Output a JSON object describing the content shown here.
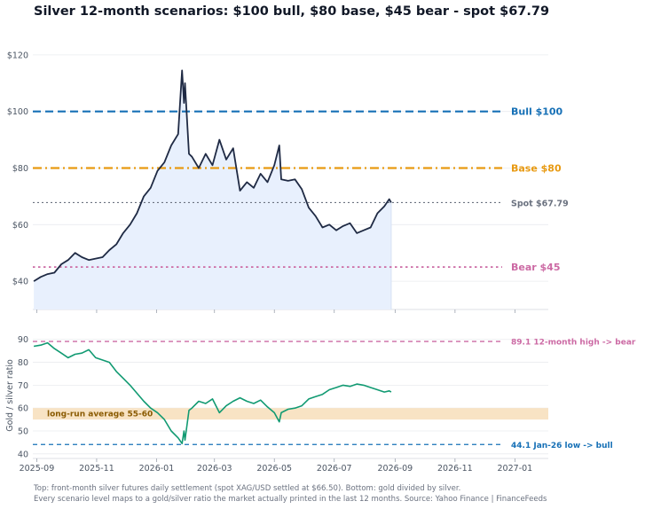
{
  "title": "Silver 12-month scenarios: $100 bull, $80 base, $45 bear  -  spot $67.79",
  "footnotes": [
    "Top: front-month silver futures daily settlement (spot XAG/USD settled at $66.50). Bottom: gold divided by silver.",
    "Every scenario level maps to a gold/silver ratio the market actually printed in the last 12 months.  Source: Yahoo Finance  |  FinanceFeeds"
  ],
  "colors": {
    "price_line": "#1f2a44",
    "price_fill": "#e8f0fd",
    "ratio_line": "#119a72",
    "bull": "#1670b6",
    "base": "#e89a12",
    "spot": "#6b7280",
    "bear": "#cc6aa4",
    "band": "#f8e3c4",
    "band_text": "#8a5a00",
    "grid": "#eaecef",
    "tick_text": "#4b5563"
  },
  "chart_data": [
    {
      "type": "line",
      "title": "Silver 12-month scenarios: $100 bull, $80 base, $45 bear  -  spot $67.79",
      "ylabel": "",
      "ylim": [
        30,
        130
      ],
      "xlim": [
        "2025-08-28",
        "2027-02-04"
      ],
      "yticks": [
        40,
        60,
        80,
        100,
        120
      ],
      "ytick_labels": [
        "$40",
        "$60",
        "$80",
        "$100",
        "$120"
      ],
      "grid": true,
      "area_under_series": true,
      "series": [
        {
          "x": [
            "2025-08-29",
            "2025-09-05",
            "2025-09-12",
            "2025-09-19",
            "2025-09-26",
            "2025-10-03",
            "2025-10-10",
            "2025-10-17",
            "2025-10-24",
            "2025-10-31",
            "2025-11-07",
            "2025-11-14",
            "2025-11-21",
            "2025-11-28",
            "2025-12-05",
            "2025-12-12",
            "2025-12-19",
            "2025-12-26",
            "2026-01-02",
            "2026-01-09",
            "2026-01-16",
            "2026-01-23",
            "2026-01-27",
            "2026-01-29",
            "2026-01-30",
            "2026-02-03",
            "2026-02-06",
            "2026-02-13",
            "2026-02-20",
            "2026-02-27",
            "2026-03-06",
            "2026-03-13",
            "2026-03-20",
            "2026-03-27",
            "2026-04-03",
            "2026-04-10",
            "2026-04-17",
            "2026-04-24",
            "2026-05-01",
            "2026-05-06",
            "2026-05-08",
            "2026-05-15",
            "2026-05-22",
            "2026-05-29",
            "2026-06-05",
            "2026-06-12",
            "2026-06-19",
            "2026-06-26",
            "2026-07-03",
            "2026-07-10",
            "2026-07-17",
            "2026-07-24",
            "2026-07-31",
            "2026-08-07",
            "2026-08-14",
            "2026-08-21",
            "2026-08-26",
            "2026-08-28"
          ],
          "values": [
            40.0,
            41.5,
            42.5,
            43.0,
            46.0,
            47.5,
            50.0,
            48.5,
            47.5,
            48.0,
            48.5,
            51.0,
            53.0,
            57.0,
            60.0,
            64.0,
            70.0,
            73.0,
            79.0,
            82.0,
            88.0,
            92.0,
            114.5,
            103.0,
            110.0,
            85.0,
            84.0,
            80.0,
            85.0,
            81.0,
            90.0,
            83.0,
            87.0,
            72.0,
            75.0,
            73.0,
            78.0,
            75.0,
            81.0,
            88.0,
            76.0,
            75.5,
            76.0,
            72.5,
            66.0,
            63.0,
            59.0,
            60.0,
            58.0,
            59.5,
            60.5,
            57.0,
            58.0,
            59.0,
            64.0,
            66.5,
            69.0,
            67.8
          ]
        }
      ],
      "reference_lines": [
        {
          "name": "Bull",
          "label": "Bull  $100",
          "value": 100,
          "style": "dashed"
        },
        {
          "name": "Base",
          "label": "Base  $80",
          "value": 80,
          "style": "dash-dot"
        },
        {
          "name": "Spot",
          "label": "Spot  $67.79",
          "value": 67.79,
          "style": "dotted"
        },
        {
          "name": "Bear",
          "label": "Bear  $45",
          "value": 45,
          "style": "dotted"
        }
      ]
    },
    {
      "type": "line",
      "ylabel": "Gold / silver ratio",
      "ylim": [
        38,
        93
      ],
      "xlim": [
        "2025-08-28",
        "2027-02-04"
      ],
      "yticks": [
        40,
        50,
        60,
        70,
        80,
        90
      ],
      "xticks": [
        "2025-09",
        "2025-11",
        "2026-01",
        "2026-03",
        "2026-05",
        "2026-07",
        "2026-09",
        "2026-11",
        "2027-01"
      ],
      "grid": true,
      "series": [
        {
          "x": [
            "2025-08-29",
            "2025-09-05",
            "2025-09-12",
            "2025-09-19",
            "2025-09-26",
            "2025-10-03",
            "2025-10-10",
            "2025-10-17",
            "2025-10-24",
            "2025-10-31",
            "2025-11-07",
            "2025-11-14",
            "2025-11-21",
            "2025-11-28",
            "2025-12-05",
            "2025-12-12",
            "2025-12-19",
            "2025-12-26",
            "2026-01-02",
            "2026-01-09",
            "2026-01-16",
            "2026-01-23",
            "2026-01-27",
            "2026-01-29",
            "2026-01-30",
            "2026-02-03",
            "2026-02-06",
            "2026-02-13",
            "2026-02-20",
            "2026-02-27",
            "2026-03-06",
            "2026-03-13",
            "2026-03-20",
            "2026-03-27",
            "2026-04-03",
            "2026-04-10",
            "2026-04-17",
            "2026-04-24",
            "2026-05-01",
            "2026-05-06",
            "2026-05-08",
            "2026-05-15",
            "2026-05-22",
            "2026-05-29",
            "2026-06-05",
            "2026-06-12",
            "2026-06-19",
            "2026-06-26",
            "2026-07-03",
            "2026-07-10",
            "2026-07-17",
            "2026-07-24",
            "2026-07-31",
            "2026-08-07",
            "2026-08-14",
            "2026-08-21",
            "2026-08-26",
            "2026-08-28"
          ],
          "values": [
            87.0,
            87.5,
            88.5,
            86.0,
            84.0,
            82.0,
            83.5,
            84.0,
            85.5,
            82.0,
            81.0,
            80.0,
            76.0,
            73.0,
            70.0,
            66.5,
            63.0,
            60.0,
            58.0,
            55.0,
            50.0,
            47.0,
            44.5,
            50.0,
            46.0,
            59.0,
            60.0,
            63.0,
            62.0,
            64.0,
            58.0,
            61.0,
            63.0,
            64.5,
            63.0,
            62.0,
            63.5,
            60.5,
            58.0,
            54.0,
            58.0,
            59.5,
            60.0,
            61.0,
            64.0,
            65.0,
            66.0,
            68.0,
            69.0,
            70.0,
            69.5,
            70.5,
            70.0,
            69.0,
            68.0,
            67.0,
            67.5,
            67.0
          ]
        }
      ],
      "reference_lines": [
        {
          "name": "12-month high",
          "label": "89.1  12-month high  ->  bear",
          "value": 89.1,
          "style": "dashed"
        },
        {
          "name": "Jan-26 low",
          "label": "44.1  Jan-26 low  ->  bull",
          "value": 44.1,
          "style": "dashed"
        }
      ],
      "band": {
        "label": "long-run average 55-60",
        "from": 55,
        "to": 60
      }
    }
  ]
}
